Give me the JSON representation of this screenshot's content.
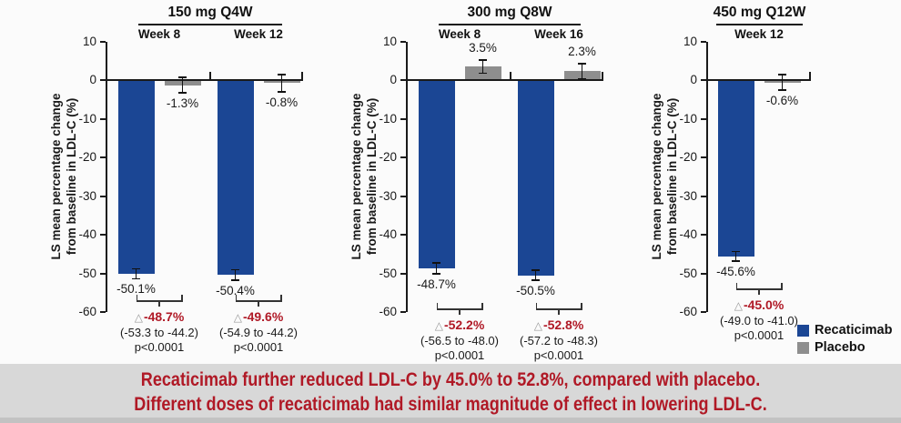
{
  "colors": {
    "recaticimab": "#1b4694",
    "placebo": "#8e8e8e",
    "axis": "#1a1a1a",
    "delta_red": "#b01926",
    "banner_bg": "#d8d8d8",
    "banner_text": "#b01926"
  },
  "delta_symbol": "△",
  "legend": {
    "items": [
      {
        "label": "Recaticimab"
      },
      {
        "label": "Placebo"
      }
    ]
  },
  "banner": {
    "line1": "Recaticimab further reduced LDL-C by 45.0% to 52.8%, compared with placebo.",
    "line2": "Different doses of recaticimab had similar magnitude of effect in lowering LDL-C."
  },
  "chart_data": [
    {
      "type": "bar",
      "title": "150 mg Q4W",
      "ylabel": [
        "LS mean percentage change",
        "from baseline in LDL-C (%)"
      ],
      "ylim": [
        -60,
        10
      ],
      "yticks": [
        10,
        0,
        -10,
        -20,
        -30,
        -40,
        -50,
        -60
      ],
      "grid": false,
      "series_names": [
        "Recaticimab",
        "Placebo"
      ],
      "groups": [
        {
          "week": "Week 8",
          "recaticimab": {
            "value": -50.1,
            "err": 1.3,
            "label": "-50.1%"
          },
          "placebo": {
            "value": -1.3,
            "err": 2.0,
            "label": "-1.3%"
          },
          "difference": {
            "delta": "-48.7%",
            "ci": "(-53.3 to -44.2)",
            "p": "p<0.0001"
          }
        },
        {
          "week": "Week 12",
          "recaticimab": {
            "value": -50.4,
            "err": 1.3,
            "label": "-50.4%"
          },
          "placebo": {
            "value": -0.8,
            "err": 2.2,
            "label": "-0.8%"
          },
          "difference": {
            "delta": "-49.6%",
            "ci": "(-54.9 to -44.2)",
            "p": "p<0.0001"
          }
        }
      ]
    },
    {
      "type": "bar",
      "title": "300 mg Q8W",
      "ylabel": [
        "LS mean percentage change",
        "from baseline in LDL-C (%)"
      ],
      "ylim": [
        -60,
        10
      ],
      "yticks": [
        10,
        0,
        -10,
        -20,
        -30,
        -40,
        -50,
        -60
      ],
      "grid": false,
      "series_names": [
        "Recaticimab",
        "Placebo"
      ],
      "groups": [
        {
          "week": "Week 8",
          "recaticimab": {
            "value": -48.7,
            "err": 1.4,
            "label": "-48.7%"
          },
          "placebo": {
            "value": 3.5,
            "err": 1.7,
            "label": "3.5%"
          },
          "difference": {
            "delta": "-52.2%",
            "ci": "(-56.5 to -48.0)",
            "p": "p<0.0001"
          }
        },
        {
          "week": "Week 16",
          "recaticimab": {
            "value": -50.5,
            "err": 1.3,
            "label": "-50.5%"
          },
          "placebo": {
            "value": 2.3,
            "err": 1.9,
            "label": "2.3%"
          },
          "difference": {
            "delta": "-52.8%",
            "ci": "(-57.2 to -48.3)",
            "p": "p<0.0001"
          }
        }
      ]
    },
    {
      "type": "bar",
      "title": "450 mg Q12W",
      "ylabel": [
        "LS mean percentage change",
        "from baseline in LDL-C (%)"
      ],
      "ylim": [
        -60,
        10
      ],
      "yticks": [
        10,
        0,
        -10,
        -20,
        -30,
        -40,
        -50,
        -60
      ],
      "grid": false,
      "series_names": [
        "Recaticimab",
        "Placebo"
      ],
      "groups": [
        {
          "week": "Week 12",
          "recaticimab": {
            "value": -45.6,
            "err": 1.2,
            "label": "-45.6%"
          },
          "placebo": {
            "value": -0.6,
            "err": 2.0,
            "label": "-0.6%"
          },
          "difference": {
            "delta": "-45.0%",
            "ci": "(-49.0 to -41.0)",
            "p": "p<0.0001"
          }
        }
      ]
    }
  ]
}
